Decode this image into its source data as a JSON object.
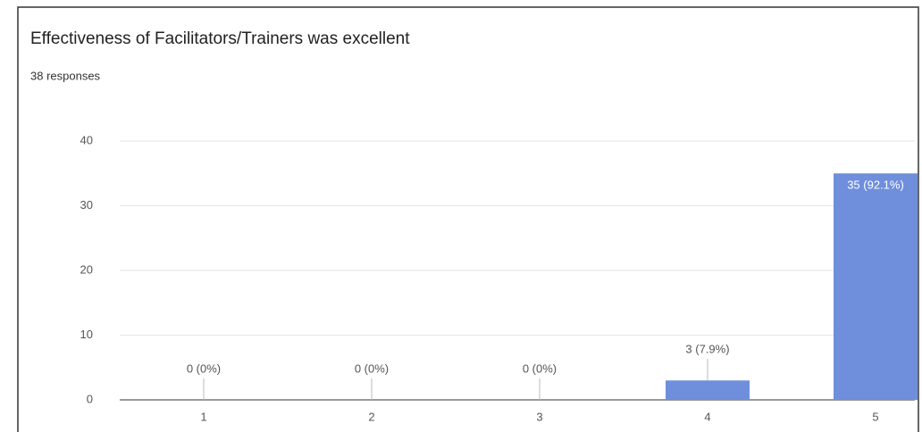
{
  "chart_data": {
    "type": "bar",
    "title": "Effectiveness of Facilitators/Trainers was excellent",
    "subtitle": "38 responses",
    "categories": [
      "1",
      "2",
      "3",
      "4",
      "5"
    ],
    "values": [
      0,
      0,
      0,
      3,
      35
    ],
    "value_labels": [
      "0 (0%)",
      "0 (0%)",
      "0 (0%)",
      "3 (7.9%)",
      "35 (92.1%)"
    ],
    "color": "#6f8fdc",
    "ylim": [
      0,
      40
    ],
    "yticks": [
      0,
      10,
      20,
      30,
      40
    ],
    "grid": true
  }
}
